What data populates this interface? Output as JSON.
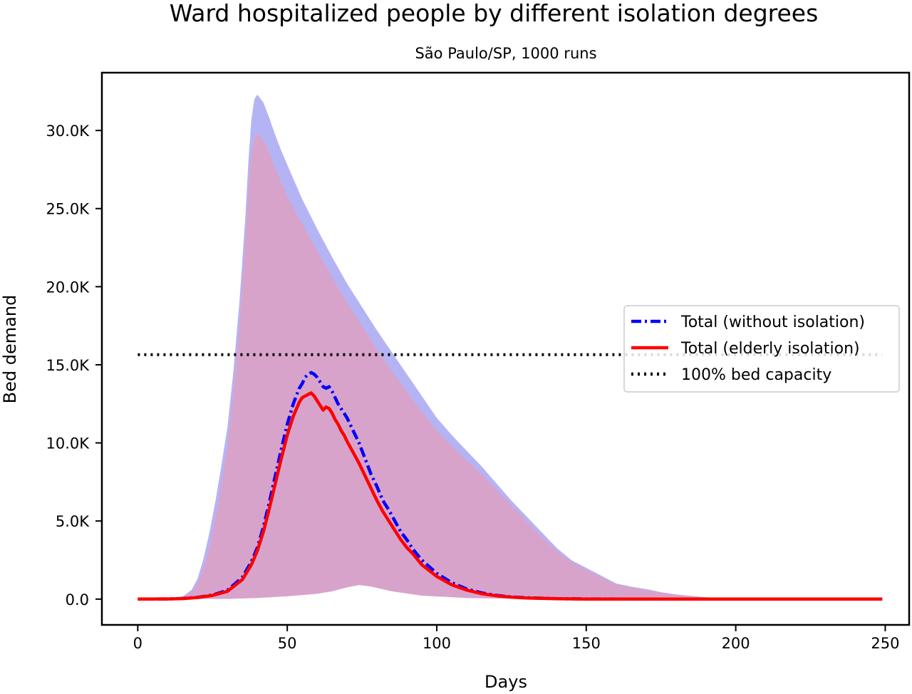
{
  "chart_data": {
    "type": "area",
    "title": "Ward hospitalized people by different isolation degrees",
    "subtitle": "São Paulo/SP, 1000 runs",
    "xlabel": "Days",
    "ylabel": "Bed demand",
    "xlim": [
      -12,
      258
    ],
    "ylim": [
      -1650,
      33700
    ],
    "x_ticks": [
      0,
      50,
      100,
      150,
      200,
      250
    ],
    "x_tick_labels": [
      "0",
      "50",
      "100",
      "150",
      "200",
      "250"
    ],
    "y_ticks": [
      0,
      5000,
      10000,
      15000,
      20000,
      25000,
      30000
    ],
    "y_tick_labels": [
      "0.0",
      "5.0K",
      "10.0K",
      "15.0K",
      "20.0K",
      "25.0K",
      "30.0K"
    ],
    "grid": false,
    "legend_position": "center-right",
    "bands": [
      {
        "series": "Total (without isolation)",
        "color": "#b4b4f5",
        "upper": [
          [
            0,
            0
          ],
          [
            10,
            20
          ],
          [
            15,
            150
          ],
          [
            18,
            600
          ],
          [
            20,
            1300
          ],
          [
            22,
            2600
          ],
          [
            24,
            4300
          ],
          [
            26,
            6300
          ],
          [
            28,
            8600
          ],
          [
            30,
            11000
          ],
          [
            32,
            14600
          ],
          [
            34,
            19000
          ],
          [
            36,
            24500
          ],
          [
            37,
            28000
          ],
          [
            38,
            30700
          ],
          [
            39,
            32000
          ],
          [
            40,
            32300
          ],
          [
            42,
            31800
          ],
          [
            44,
            30800
          ],
          [
            46,
            29700
          ],
          [
            48,
            28700
          ],
          [
            50,
            27800
          ],
          [
            55,
            25600
          ],
          [
            60,
            23700
          ],
          [
            65,
            21900
          ],
          [
            70,
            20200
          ],
          [
            75,
            18700
          ],
          [
            80,
            17200
          ],
          [
            85,
            15800
          ],
          [
            90,
            14400
          ],
          [
            95,
            13000
          ],
          [
            100,
            11600
          ],
          [
            105,
            10500
          ],
          [
            110,
            9500
          ],
          [
            115,
            8500
          ],
          [
            120,
            7400
          ],
          [
            125,
            6300
          ],
          [
            130,
            5300
          ],
          [
            135,
            4300
          ],
          [
            140,
            3300
          ],
          [
            145,
            2500
          ],
          [
            150,
            2000
          ],
          [
            155,
            1500
          ],
          [
            160,
            1000
          ],
          [
            165,
            800
          ],
          [
            170,
            650
          ],
          [
            175,
            450
          ],
          [
            180,
            300
          ],
          [
            190,
            120
          ],
          [
            200,
            40
          ],
          [
            210,
            15
          ],
          [
            220,
            5
          ],
          [
            249,
            0
          ]
        ],
        "lower": [
          [
            0,
            0
          ],
          [
            30,
            20
          ],
          [
            40,
            80
          ],
          [
            50,
            200
          ],
          [
            60,
            380
          ],
          [
            65,
            550
          ],
          [
            70,
            800
          ],
          [
            74,
            950
          ],
          [
            78,
            850
          ],
          [
            85,
            550
          ],
          [
            95,
            250
          ],
          [
            110,
            80
          ],
          [
            130,
            20
          ],
          [
            150,
            0
          ],
          [
            249,
            0
          ]
        ]
      },
      {
        "series": "Total (elderly isolation)",
        "color": "#d8a3cb",
        "upper": [
          [
            0,
            0
          ],
          [
            10,
            15
          ],
          [
            15,
            120
          ],
          [
            18,
            450
          ],
          [
            20,
            1000
          ],
          [
            22,
            2000
          ],
          [
            24,
            3400
          ],
          [
            26,
            5200
          ],
          [
            28,
            7400
          ],
          [
            30,
            9800
          ],
          [
            32,
            13200
          ],
          [
            34,
            17500
          ],
          [
            36,
            23000
          ],
          [
            37,
            26200
          ],
          [
            38,
            28500
          ],
          [
            39,
            29500
          ],
          [
            40,
            29800
          ],
          [
            42,
            29400
          ],
          [
            44,
            28600
          ],
          [
            46,
            27600
          ],
          [
            48,
            26700
          ],
          [
            50,
            25800
          ],
          [
            55,
            24000
          ],
          [
            60,
            22300
          ],
          [
            65,
            20600
          ],
          [
            70,
            19000
          ],
          [
            75,
            17500
          ],
          [
            80,
            16000
          ],
          [
            85,
            14600
          ],
          [
            90,
            13300
          ],
          [
            95,
            12000
          ],
          [
            100,
            10800
          ],
          [
            105,
            9800
          ],
          [
            110,
            8900
          ],
          [
            115,
            8000
          ],
          [
            120,
            7000
          ],
          [
            125,
            6000
          ],
          [
            130,
            5000
          ],
          [
            135,
            4000
          ],
          [
            140,
            3100
          ],
          [
            145,
            2400
          ],
          [
            150,
            1900
          ],
          [
            155,
            1400
          ],
          [
            160,
            950
          ],
          [
            165,
            750
          ],
          [
            170,
            600
          ],
          [
            175,
            420
          ],
          [
            180,
            280
          ],
          [
            190,
            110
          ],
          [
            200,
            35
          ],
          [
            210,
            12
          ],
          [
            220,
            4
          ],
          [
            249,
            0
          ]
        ],
        "lower": [
          [
            0,
            0
          ],
          [
            30,
            15
          ],
          [
            40,
            70
          ],
          [
            50,
            180
          ],
          [
            60,
            340
          ],
          [
            65,
            500
          ],
          [
            70,
            750
          ],
          [
            74,
            900
          ],
          [
            78,
            800
          ],
          [
            85,
            500
          ],
          [
            95,
            220
          ],
          [
            110,
            70
          ],
          [
            130,
            15
          ],
          [
            150,
            0
          ],
          [
            249,
            0
          ]
        ]
      }
    ],
    "series": [
      {
        "name": "Total (without isolation)",
        "color": "#0000ff",
        "dash": "dashdot",
        "points": [
          [
            0,
            0
          ],
          [
            10,
            10
          ],
          [
            15,
            40
          ],
          [
            20,
            110
          ],
          [
            25,
            260
          ],
          [
            30,
            560
          ],
          [
            35,
            1400
          ],
          [
            38,
            2400
          ],
          [
            40,
            3300
          ],
          [
            42,
            4600
          ],
          [
            44,
            6200
          ],
          [
            46,
            7900
          ],
          [
            48,
            9600
          ],
          [
            50,
            11200
          ],
          [
            52,
            12500
          ],
          [
            54,
            13500
          ],
          [
            55,
            13800
          ],
          [
            56,
            14200
          ],
          [
            57,
            14400
          ],
          [
            58,
            14500
          ],
          [
            59,
            14400
          ],
          [
            60,
            14200
          ],
          [
            61,
            13900
          ],
          [
            62,
            13600
          ],
          [
            63,
            13500
          ],
          [
            64,
            13600
          ],
          [
            65,
            13300
          ],
          [
            66,
            12900
          ],
          [
            67,
            12500
          ],
          [
            68,
            12200
          ],
          [
            69,
            11900
          ],
          [
            70,
            11600
          ],
          [
            72,
            10800
          ],
          [
            74,
            10000
          ],
          [
            76,
            9000
          ],
          [
            78,
            8000
          ],
          [
            80,
            7200
          ],
          [
            82,
            6300
          ],
          [
            84,
            5700
          ],
          [
            86,
            5000
          ],
          [
            88,
            4300
          ],
          [
            90,
            3800
          ],
          [
            92,
            3200
          ],
          [
            95,
            2500
          ],
          [
            100,
            1650
          ],
          [
            105,
            1050
          ],
          [
            110,
            650
          ],
          [
            115,
            400
          ],
          [
            120,
            240
          ],
          [
            125,
            140
          ],
          [
            130,
            85
          ],
          [
            140,
            30
          ],
          [
            150,
            10
          ],
          [
            170,
            3
          ],
          [
            200,
            1
          ],
          [
            249,
            0
          ]
        ]
      },
      {
        "name": "Total (elderly isolation)",
        "color": "#ff0000",
        "dash": "solid",
        "points": [
          [
            0,
            0
          ],
          [
            10,
            10
          ],
          [
            15,
            35
          ],
          [
            20,
            100
          ],
          [
            25,
            240
          ],
          [
            30,
            500
          ],
          [
            35,
            1250
          ],
          [
            38,
            2200
          ],
          [
            40,
            3100
          ],
          [
            42,
            4300
          ],
          [
            44,
            5800
          ],
          [
            46,
            7400
          ],
          [
            48,
            9000
          ],
          [
            50,
            10500
          ],
          [
            52,
            11700
          ],
          [
            54,
            12600
          ],
          [
            55,
            12900
          ],
          [
            56,
            13000
          ],
          [
            57,
            13100
          ],
          [
            58,
            13200
          ],
          [
            59,
            13000
          ],
          [
            60,
            12700
          ],
          [
            61,
            12400
          ],
          [
            62,
            12100
          ],
          [
            63,
            12300
          ],
          [
            64,
            12200
          ],
          [
            65,
            11900
          ],
          [
            66,
            11500
          ],
          [
            67,
            11200
          ],
          [
            68,
            10800
          ],
          [
            69,
            10500
          ],
          [
            70,
            10100
          ],
          [
            72,
            9400
          ],
          [
            74,
            8700
          ],
          [
            76,
            7900
          ],
          [
            78,
            7100
          ],
          [
            80,
            6300
          ],
          [
            82,
            5600
          ],
          [
            84,
            5000
          ],
          [
            86,
            4400
          ],
          [
            88,
            3800
          ],
          [
            90,
            3300
          ],
          [
            92,
            2900
          ],
          [
            95,
            2200
          ],
          [
            100,
            1450
          ],
          [
            105,
            920
          ],
          [
            110,
            580
          ],
          [
            115,
            350
          ],
          [
            120,
            210
          ],
          [
            125,
            125
          ],
          [
            130,
            75
          ],
          [
            140,
            25
          ],
          [
            150,
            8
          ],
          [
            170,
            2
          ],
          [
            200,
            1
          ],
          [
            249,
            0
          ]
        ]
      },
      {
        "name": "100% bed capacity",
        "color": "#000000",
        "dash": "dotted",
        "points": [
          [
            0,
            15650
          ],
          [
            249,
            15650
          ]
        ]
      }
    ],
    "legend": [
      {
        "label": "Total (without isolation)",
        "color": "#0000ff",
        "dash": "dashdot"
      },
      {
        "label": "Total (elderly isolation)",
        "color": "#ff0000",
        "dash": "solid"
      },
      {
        "label": "100% bed capacity",
        "color": "#000000",
        "dash": "dotted"
      }
    ]
  }
}
